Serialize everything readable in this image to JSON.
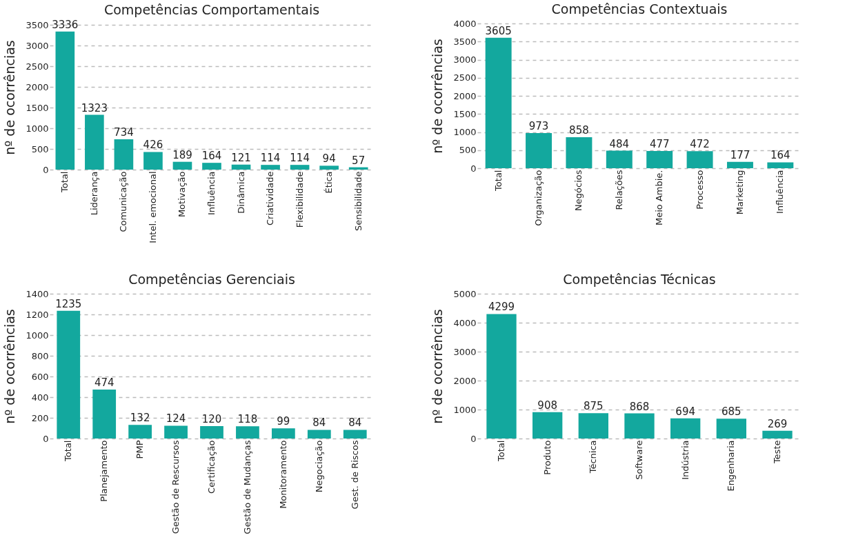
{
  "chart_data": [
    {
      "type": "bar",
      "title": "Competências Comportamentais",
      "ylabel": "nº de ocorrências",
      "categories": [
        "Total",
        "Liderança",
        "Comunicação",
        "Intel. emocional",
        "Motivação",
        "Influência",
        "Dinâmica",
        "Criatividade",
        "Flexibilidade",
        "Ética",
        "Sensibilidade"
      ],
      "values": [
        3336,
        1323,
        734,
        426,
        189,
        164,
        121,
        114,
        114,
        94,
        57
      ],
      "color": "#13a89e",
      "ylim": [
        0,
        3500
      ],
      "yticks": [
        0,
        500,
        1000,
        1500,
        2000,
        2500,
        3000,
        3500
      ],
      "grid": "y",
      "data_labels": true
    },
    {
      "type": "bar",
      "title": "Competências Contextuais",
      "ylabel": "nº de ocorrências",
      "categories": [
        "Total",
        "Organização",
        "Negócios",
        "Relações",
        "Meio Ambie.",
        "Processo",
        "Marketing",
        "Influência"
      ],
      "values": [
        3605,
        973,
        858,
        484,
        477,
        472,
        177,
        164
      ],
      "color": "#13a89e",
      "ylim": [
        0,
        4000
      ],
      "yticks": [
        0,
        500,
        1000,
        1500,
        2000,
        2500,
        3000,
        3500,
        4000
      ],
      "grid": "y",
      "data_labels": true
    },
    {
      "type": "bar",
      "title": "Competências Gerenciais",
      "ylabel": "nº de ocorrências",
      "categories": [
        "Total",
        "Planejamento",
        "PMP",
        "Gestão de Rescursos",
        "Certificação",
        "Gestão de Mudanças",
        "Monitoramento",
        "Negociação",
        "Gest. de Riscos"
      ],
      "values": [
        1235,
        474,
        132,
        124,
        120,
        118,
        99,
        84,
        84
      ],
      "color": "#13a89e",
      "ylim": [
        0,
        1400
      ],
      "yticks": [
        0,
        200,
        400,
        600,
        800,
        1000,
        1200,
        1400
      ],
      "grid": "y",
      "data_labels": true
    },
    {
      "type": "bar",
      "title": "Competências Técnicas",
      "ylabel": "nº de ocorrências",
      "categories": [
        "Total",
        "Produto",
        "Técnica",
        "Software",
        "Indústria",
        "Engenharia",
        "Teste"
      ],
      "values": [
        4299,
        908,
        875,
        868,
        694,
        685,
        269
      ],
      "color": "#13a89e",
      "ylim": [
        0,
        5000
      ],
      "yticks": [
        0,
        1000,
        2000,
        3000,
        4000,
        5000
      ],
      "grid": "y",
      "data_labels": true
    }
  ]
}
